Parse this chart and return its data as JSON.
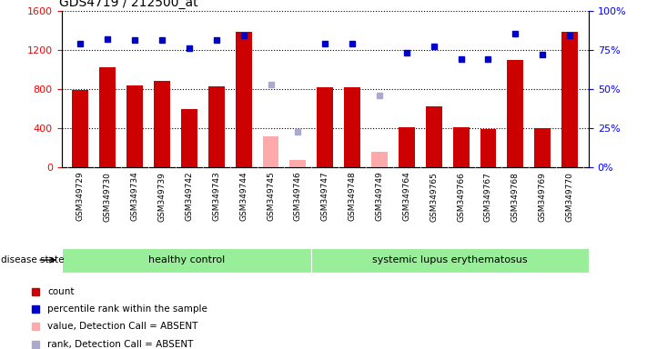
{
  "title": "GDS4719 / 212500_at",
  "samples": [
    "GSM349729",
    "GSM349730",
    "GSM349734",
    "GSM349739",
    "GSM349742",
    "GSM349743",
    "GSM349744",
    "GSM349745",
    "GSM349746",
    "GSM349747",
    "GSM349748",
    "GSM349749",
    "GSM349764",
    "GSM349765",
    "GSM349766",
    "GSM349767",
    "GSM349768",
    "GSM349769",
    "GSM349770"
  ],
  "bar_values": [
    790,
    1020,
    840,
    880,
    600,
    830,
    1380,
    null,
    null,
    820,
    820,
    null,
    410,
    620,
    410,
    390,
    1100,
    400,
    1380
  ],
  "bar_absent_values": [
    null,
    null,
    null,
    null,
    null,
    null,
    null,
    320,
    80,
    null,
    null,
    160,
    null,
    null,
    null,
    null,
    null,
    null,
    null
  ],
  "percentile_values": [
    79,
    82,
    81,
    81,
    76,
    81,
    84,
    null,
    null,
    79,
    79,
    null,
    73,
    77,
    69,
    69,
    85,
    72,
    84
  ],
  "percentile_absent_values": [
    null,
    null,
    null,
    null,
    null,
    null,
    null,
    53,
    23,
    null,
    null,
    46,
    null,
    null,
    null,
    null,
    null,
    null,
    null
  ],
  "bar_color": "#cc0000",
  "bar_absent_color": "#ffaaaa",
  "percentile_color": "#0000cc",
  "percentile_absent_color": "#aaaacc",
  "ylim_left": [
    0,
    1600
  ],
  "ylim_right": [
    0,
    100
  ],
  "yticks_left": [
    0,
    400,
    800,
    1200,
    1600
  ],
  "yticks_right": [
    0,
    25,
    50,
    75,
    100
  ],
  "group_labels": [
    "healthy control",
    "systemic lupus erythematosus"
  ],
  "group_color": "#99ee99",
  "legend_items": [
    {
      "label": "count",
      "color": "#cc0000"
    },
    {
      "label": "percentile rank within the sample",
      "color": "#0000cc"
    },
    {
      "label": "value, Detection Call = ABSENT",
      "color": "#ffaaaa"
    },
    {
      "label": "rank, Detection Call = ABSENT",
      "color": "#aaaacc"
    }
  ],
  "disease_state_label": "disease state",
  "xtick_bg": "#d8d8d8",
  "plot_bg": "#ffffff"
}
